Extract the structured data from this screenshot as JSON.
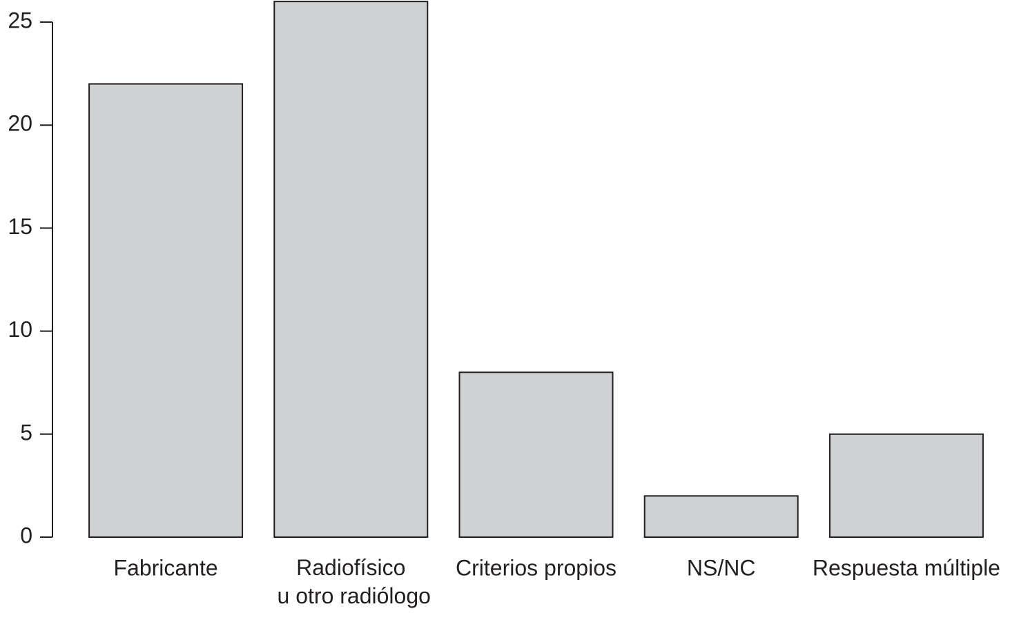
{
  "chart_data": {
    "type": "bar",
    "categories": [
      "Fabricante",
      "Radiofísico\nu otro radiólogo",
      "Criterios propios",
      "NS/NC",
      "Respuesta múltiple"
    ],
    "values": [
      22,
      26,
      8,
      2,
      5
    ],
    "color": "#d0d1d3",
    "ylim": [
      0,
      26
    ],
    "yticks": [
      0,
      5,
      10,
      15,
      20,
      25
    ],
    "grid": false
  }
}
